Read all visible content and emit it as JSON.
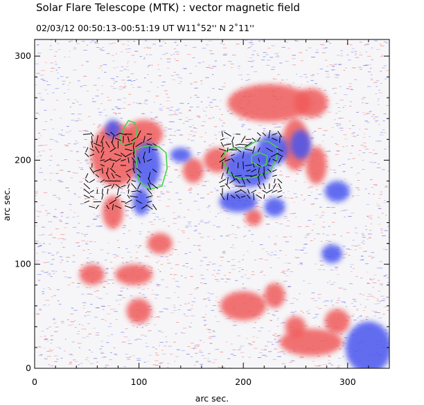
{
  "header": {
    "title": "Solar Flare Telescope (MTK) : vector magnetic field",
    "subtitle": "02/03/12   00:50:13–00:51:19 UT      W11˚52''    N 2˚11''"
  },
  "chart_data": {
    "type": "heatmap",
    "title": "Solar Flare Telescope (MTK) : vector magnetic field",
    "subtitle": "02/03/12   00:50:13–00:51:19 UT      W11˚52''    N 2˚11''",
    "xlabel": "arc sec.",
    "ylabel": "arc sec.",
    "xlim": [
      0,
      340
    ],
    "ylim": [
      0,
      316
    ],
    "xticks": [
      0,
      100,
      200,
      300
    ],
    "yticks": [
      0,
      100,
      200,
      300
    ],
    "xticklabels": [
      "0",
      "100",
      "200",
      "300"
    ],
    "yticklabels": [
      "0",
      "100",
      "200",
      "300"
    ],
    "colors": {
      "positive_polarity": "#f05a5a",
      "negative_polarity": "#4a55ee",
      "contour": "#46d246",
      "vectors": "#000000",
      "axes": "#000000"
    },
    "positive_regions": [
      {
        "x": 78,
        "y": 205,
        "rx": 24,
        "ry": 30
      },
      {
        "x": 105,
        "y": 225,
        "rx": 18,
        "ry": 14
      },
      {
        "x": 120,
        "y": 120,
        "rx": 12,
        "ry": 10
      },
      {
        "x": 75,
        "y": 150,
        "rx": 10,
        "ry": 16
      },
      {
        "x": 95,
        "y": 90,
        "rx": 18,
        "ry": 10
      },
      {
        "x": 55,
        "y": 90,
        "rx": 12,
        "ry": 10
      },
      {
        "x": 100,
        "y": 55,
        "rx": 12,
        "ry": 12
      },
      {
        "x": 175,
        "y": 200,
        "rx": 13,
        "ry": 12
      },
      {
        "x": 152,
        "y": 190,
        "rx": 10,
        "ry": 12
      },
      {
        "x": 225,
        "y": 255,
        "rx": 40,
        "ry": 18
      },
      {
        "x": 265,
        "y": 255,
        "rx": 16,
        "ry": 14
      },
      {
        "x": 250,
        "y": 215,
        "rx": 13,
        "ry": 25
      },
      {
        "x": 270,
        "y": 195,
        "rx": 10,
        "ry": 18
      },
      {
        "x": 210,
        "y": 145,
        "rx": 8,
        "ry": 8
      },
      {
        "x": 200,
        "y": 60,
        "rx": 22,
        "ry": 14
      },
      {
        "x": 230,
        "y": 70,
        "rx": 10,
        "ry": 12
      },
      {
        "x": 265,
        "y": 25,
        "rx": 30,
        "ry": 13
      },
      {
        "x": 290,
        "y": 45,
        "rx": 12,
        "ry": 12
      },
      {
        "x": 250,
        "y": 40,
        "rx": 10,
        "ry": 10
      }
    ],
    "negative_regions": [
      {
        "x": 75,
        "y": 230,
        "rx": 7,
        "ry": 9
      },
      {
        "x": 108,
        "y": 195,
        "rx": 13,
        "ry": 22
      },
      {
        "x": 102,
        "y": 160,
        "rx": 8,
        "ry": 13
      },
      {
        "x": 140,
        "y": 205,
        "rx": 10,
        "ry": 7
      },
      {
        "x": 205,
        "y": 192,
        "rx": 22,
        "ry": 18
      },
      {
        "x": 228,
        "y": 210,
        "rx": 15,
        "ry": 15
      },
      {
        "x": 255,
        "y": 215,
        "rx": 10,
        "ry": 14
      },
      {
        "x": 195,
        "y": 160,
        "rx": 18,
        "ry": 10
      },
      {
        "x": 230,
        "y": 155,
        "rx": 10,
        "ry": 9
      },
      {
        "x": 285,
        "y": 110,
        "rx": 10,
        "ry": 9
      },
      {
        "x": 290,
        "y": 170,
        "rx": 12,
        "ry": 10
      },
      {
        "x": 320,
        "y": 20,
        "rx": 22,
        "ry": 25
      }
    ],
    "contours": [
      {
        "points": [
          [
            82,
            222
          ],
          [
            86,
            232
          ],
          [
            90,
            238
          ],
          [
            96,
            236
          ],
          [
            98,
            226
          ],
          [
            94,
            216
          ],
          [
            86,
            214
          ],
          [
            82,
            218
          ]
        ]
      },
      {
        "points": [
          [
            96,
            210
          ],
          [
            100,
            180
          ],
          [
            110,
            172
          ],
          [
            122,
            175
          ],
          [
            127,
            192
          ],
          [
            126,
            207
          ],
          [
            119,
            213
          ],
          [
            110,
            214
          ],
          [
            101,
            212
          ]
        ]
      },
      {
        "points": [
          [
            180,
            200
          ],
          [
            186,
            188
          ],
          [
            196,
            182
          ],
          [
            212,
            184
          ],
          [
            226,
            190
          ],
          [
            232,
            202
          ],
          [
            233,
            212
          ],
          [
            224,
            218
          ],
          [
            212,
            218
          ],
          [
            202,
            212
          ],
          [
            192,
            212
          ],
          [
            182,
            208
          ]
        ]
      },
      {
        "points": [
          [
            208,
            198
          ],
          [
            216,
            194
          ],
          [
            222,
            196
          ],
          [
            223,
            204
          ],
          [
            216,
            207
          ],
          [
            208,
            204
          ]
        ]
      }
    ],
    "vector_clusters": [
      {
        "x": [
          50,
          115
        ],
        "y": [
          155,
          225
        ]
      },
      {
        "x": [
          180,
          235
        ],
        "y": [
          165,
          225
        ]
      }
    ]
  }
}
